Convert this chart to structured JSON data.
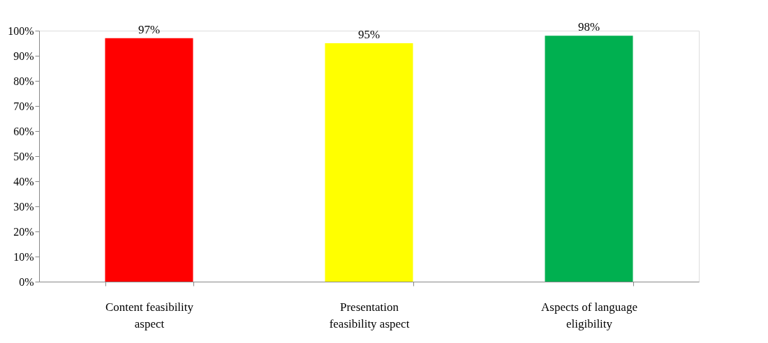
{
  "chart_data": {
    "type": "bar",
    "categories": [
      "Content feasibility aspect",
      "Presentation feasibility aspect",
      "Aspects of language eligibility"
    ],
    "values": [
      97,
      95,
      98
    ],
    "colors": [
      "#ff0000",
      "#ffff00",
      "#00b050"
    ],
    "value_labels": [
      "97%",
      "95%",
      "98%"
    ],
    "ylim": [
      0,
      100
    ],
    "yticks": [
      {
        "value": 0,
        "label": "0%"
      },
      {
        "value": 10,
        "label": "10%"
      },
      {
        "value": 20,
        "label": "20%"
      },
      {
        "value": 30,
        "label": "30%"
      },
      {
        "value": 40,
        "label": "40%"
      },
      {
        "value": 50,
        "label": "50%"
      },
      {
        "value": 60,
        "label": "60%"
      },
      {
        "value": 70,
        "label": "70%"
      },
      {
        "value": 80,
        "label": "80%"
      },
      {
        "value": 90,
        "label": "90%"
      },
      {
        "value": 100,
        "label": "100%"
      }
    ],
    "grid": false
  }
}
